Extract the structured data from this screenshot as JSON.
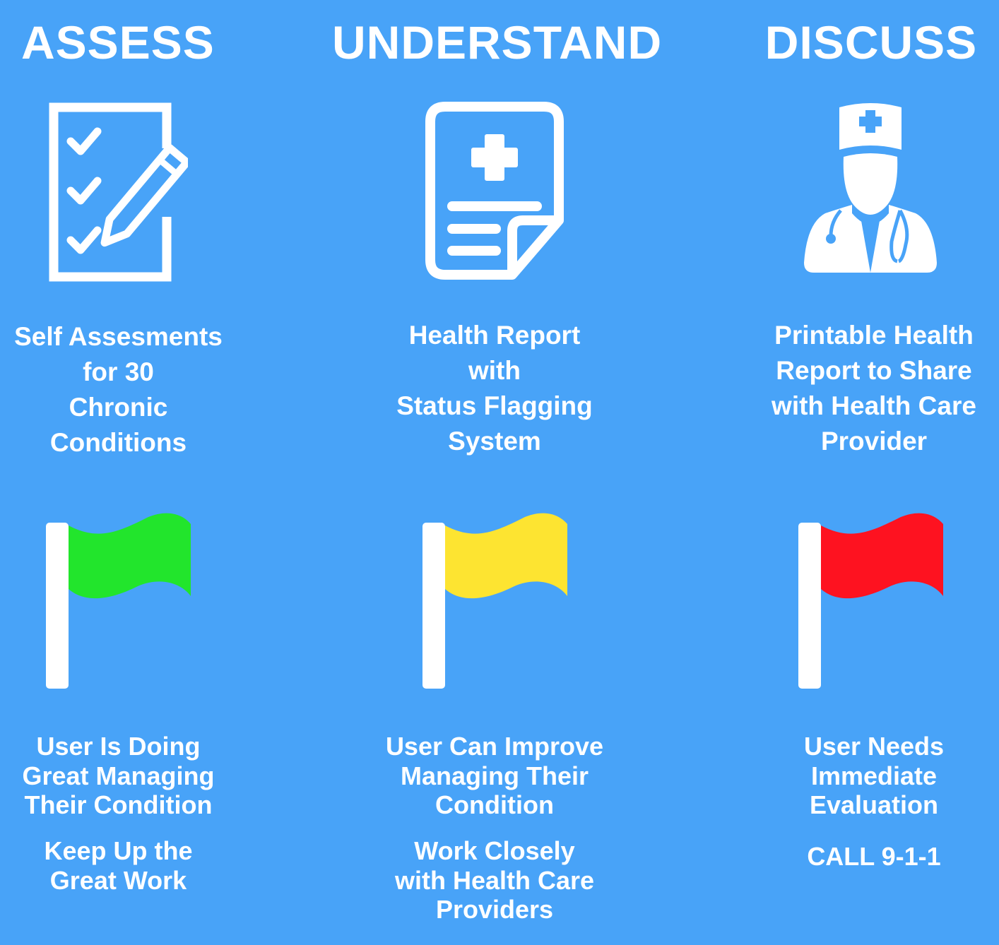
{
  "columns": [
    {
      "heading": "ASSESS",
      "description": [
        "Self Assesments",
        "for 30",
        "Chronic",
        "Conditions"
      ],
      "icon": "checklist-pencil-icon",
      "flag": {
        "icon": "flag-icon",
        "color": "#22e52c"
      },
      "status": [
        "User Is Doing",
        "Great Managing",
        "Their Condition"
      ],
      "action": [
        "Keep Up the",
        "Great Work"
      ]
    },
    {
      "heading": "UNDERSTAND",
      "description": [
        "Health Report",
        "with",
        "Status Flagging",
        "System"
      ],
      "icon": "medical-report-icon",
      "flag": {
        "icon": "flag-icon",
        "color": "#fde431"
      },
      "status": [
        "User Can Improve",
        "Managing Their",
        "Condition"
      ],
      "action": [
        "Work Closely",
        "with Health Care",
        "Providers"
      ]
    },
    {
      "heading": "DISCUSS",
      "description": [
        "Printable Health",
        "Report to Share",
        "with Health Care",
        "Provider"
      ],
      "icon": "doctor-icon",
      "flag": {
        "icon": "flag-icon",
        "color": "#fe1220"
      },
      "status": [
        "User Needs",
        "Immediate",
        "Evaluation"
      ],
      "action": [
        "CALL 9-1-1"
      ]
    }
  ],
  "colors": {
    "background": "#48a3f8",
    "foreground": "#ffffff"
  }
}
